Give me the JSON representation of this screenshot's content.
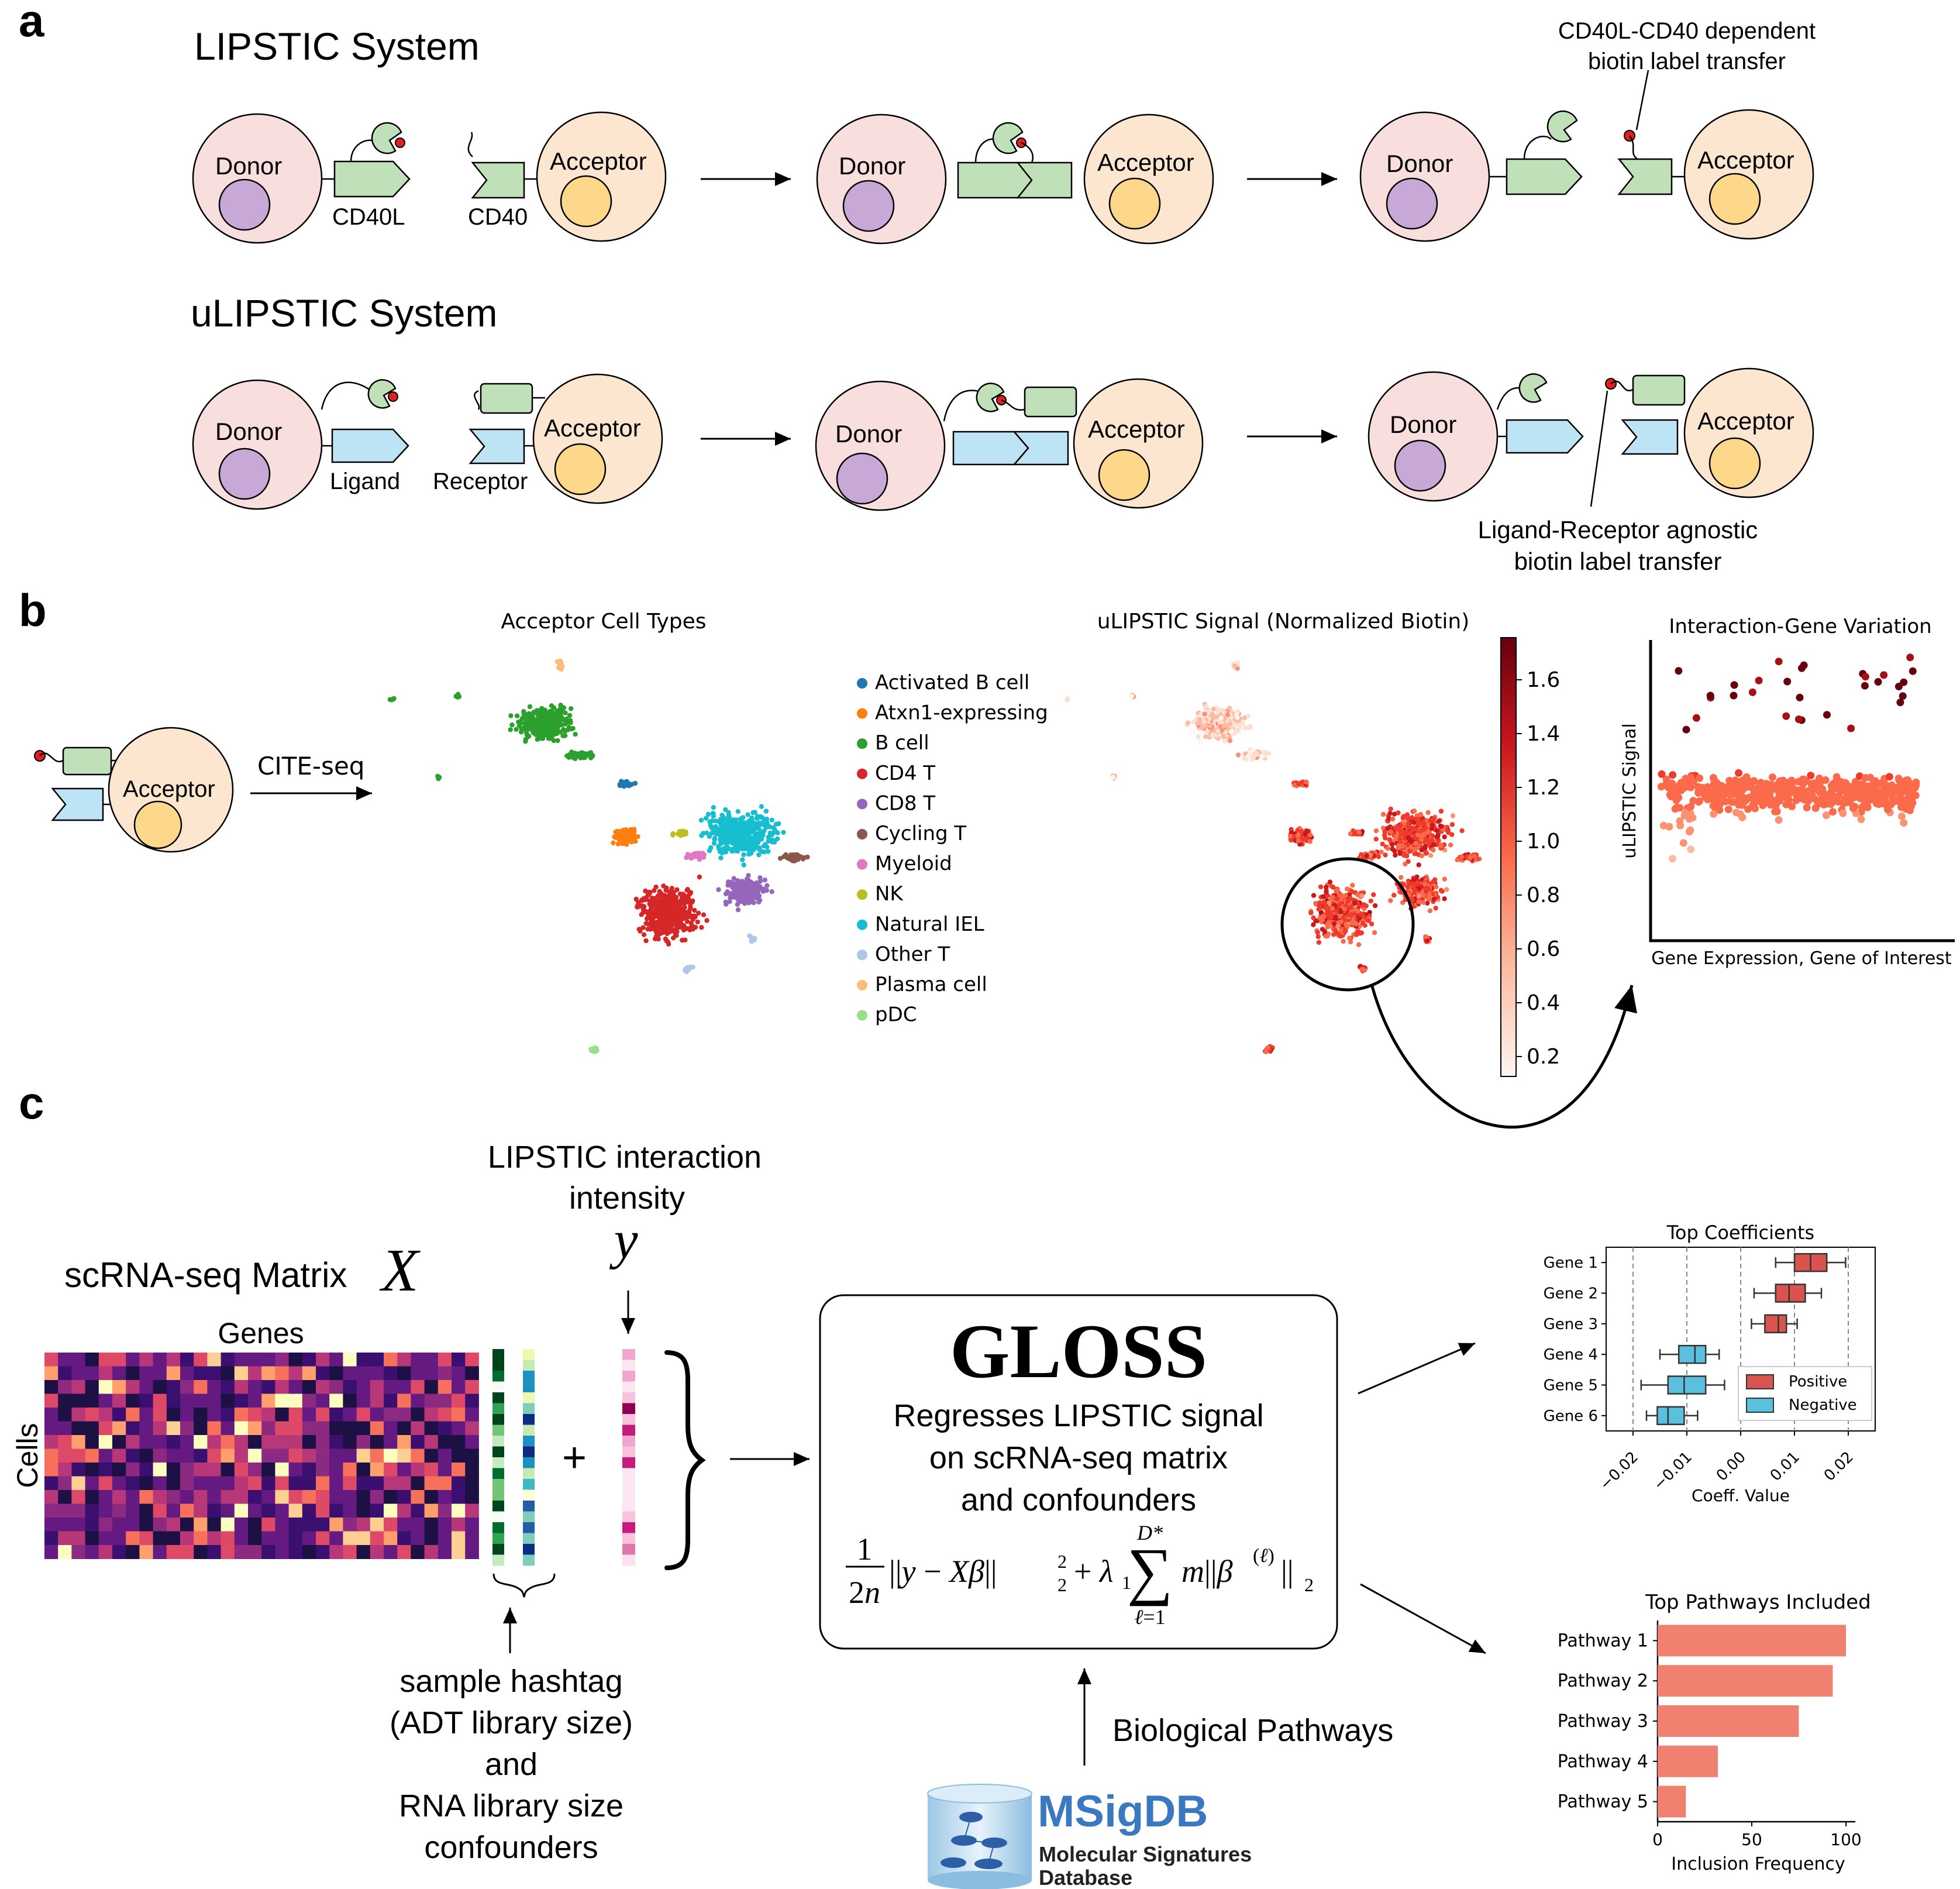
{
  "panel_labels": {
    "a": "a",
    "b": "b",
    "c": "c"
  },
  "panel_a": {
    "lipstic_title": "LIPSTIC System",
    "ulipstic_title": "uLIPSTIC System",
    "donor": "Donor",
    "acceptor": "Acceptor",
    "cd40l": "CD40L",
    "cd40": "CD40",
    "ligand": "Ligand",
    "receptor": "Receptor",
    "annotation_top_line1": "CD40L-CD40 dependent",
    "annotation_top_line2": "biotin label transfer",
    "annotation_bottom_line1": "Ligand-Receptor agnostic",
    "annotation_bottom_line2": "biotin label transfer"
  },
  "panel_b": {
    "acceptor": "Acceptor",
    "cite_seq": "CITE-seq",
    "umap_title": "Acceptor Cell Types",
    "signal_title": "uLIPSTIC Signal (Normalized Biotin)",
    "legend": [
      {
        "label": "Activated B cell",
        "color": "#1f77b4"
      },
      {
        "label": "Atxn1-expressing",
        "color": "#ff7f0e"
      },
      {
        "label": "B cell",
        "color": "#2ca02c"
      },
      {
        "label": "CD4 T",
        "color": "#d62728"
      },
      {
        "label": "CD8 T",
        "color": "#9467bd"
      },
      {
        "label": "Cycling T",
        "color": "#8c564b"
      },
      {
        "label": "Myeloid",
        "color": "#e377c2"
      },
      {
        "label": "NK",
        "color": "#bcbd22"
      },
      {
        "label": "Natural IEL",
        "color": "#17becf"
      },
      {
        "label": "Other T",
        "color": "#aec7e8"
      },
      {
        "label": "Plasma cell",
        "color": "#ffbb78"
      },
      {
        "label": "pDC",
        "color": "#98df8a"
      }
    ],
    "colorbar_ticks": [
      "1.6",
      "1.4",
      "1.2",
      "1.0",
      "0.8",
      "0.6",
      "0.4",
      "0.2"
    ],
    "scatter_title": "Interaction-Gene Variation",
    "scatter_ylabel": "uLIPSTIC Signal",
    "scatter_xlabel": "Gene Expression, Gene of Interest"
  },
  "panel_c": {
    "matrix_title": "scRNA-seq Matrix",
    "matrix_symbol": "X",
    "genes": "Genes",
    "cells": "Cells",
    "y_label_line1": "LIPSTIC interaction",
    "y_label_line2": "intensity",
    "y_symbol": "y",
    "plus": "+",
    "confounder_lines": [
      "sample hashtag",
      "(ADT library size)",
      "and",
      "RNA library size",
      "confounders"
    ],
    "gloss_title": "GLOSS",
    "gloss_lines": [
      "Regresses LIPSTIC signal",
      "on scRNA-seq matrix",
      "and confounders"
    ],
    "pathways_label": "Biological Pathways",
    "msigdb_name": "MSigDB",
    "msigdb_sub1": "Molecular Signatures",
    "msigdb_sub2": "Database",
    "coef_title": "Top Coefficients",
    "coef_xlabel": "Coeff. Value",
    "coef_genes": [
      "Gene 1",
      "Gene 2",
      "Gene 3",
      "Gene 4",
      "Gene 5",
      "Gene 6"
    ],
    "coef_ticks": [
      "−0.02",
      "−0.01",
      "0.00",
      "0.01",
      "0.02"
    ],
    "legend_positive": "Positive",
    "legend_negative": "Negative",
    "colors": {
      "positive": "#d9534f",
      "negative": "#5bc0de",
      "bar": "#f08070"
    },
    "pathways_title": "Top Pathways Included",
    "pathways_xlabel": "Inclusion Frequency",
    "pathways": [
      "Pathway 1",
      "Pathway 2",
      "Pathway 3",
      "Pathway 4",
      "Pathway 5"
    ],
    "pathway_ticks": [
      "0",
      "50",
      "100"
    ]
  },
  "chart_data": [
    {
      "type": "box",
      "title": "Top Coefficients",
      "xlabel": "Coeff. Value",
      "categories": [
        "Gene 1",
        "Gene 2",
        "Gene 3",
        "Gene 4",
        "Gene 5",
        "Gene 6"
      ],
      "series": [
        {
          "name": "Positive",
          "boxes": [
            {
              "q1": 0.01,
              "median": 0.013,
              "q3": 0.016,
              "min": 0.0065,
              "max": 0.0195
            },
            {
              "q1": 0.0065,
              "median": 0.009,
              "q3": 0.012,
              "min": 0.0025,
              "max": 0.015
            },
            {
              "q1": 0.0045,
              "median": 0.007,
              "q3": 0.0085,
              "min": 0.002,
              "max": 0.0105
            }
          ]
        },
        {
          "name": "Negative",
          "boxes": [
            {
              "q1": -0.0115,
              "median": -0.0085,
              "q3": -0.0065,
              "min": -0.015,
              "max": -0.004
            },
            {
              "q1": -0.0135,
              "median": -0.0105,
              "q3": -0.0065,
              "min": -0.0185,
              "max": -0.003
            },
            {
              "q1": -0.0155,
              "median": -0.0135,
              "q3": -0.0105,
              "min": -0.0175,
              "max": -0.008
            }
          ]
        }
      ],
      "xlim": [
        -0.025,
        0.025
      ],
      "xticks": [
        -0.02,
        -0.01,
        0.0,
        0.01,
        0.02
      ],
      "grid": "vertical dashed"
    },
    {
      "type": "bar",
      "orientation": "horizontal",
      "title": "Top Pathways Included",
      "xlabel": "Inclusion Frequency",
      "categories": [
        "Pathway 1",
        "Pathway 2",
        "Pathway 3",
        "Pathway 4",
        "Pathway 5"
      ],
      "values": [
        100,
        93,
        75,
        32,
        15
      ],
      "xlim": [
        0,
        105
      ],
      "xticks": [
        0,
        50,
        100
      ]
    }
  ]
}
